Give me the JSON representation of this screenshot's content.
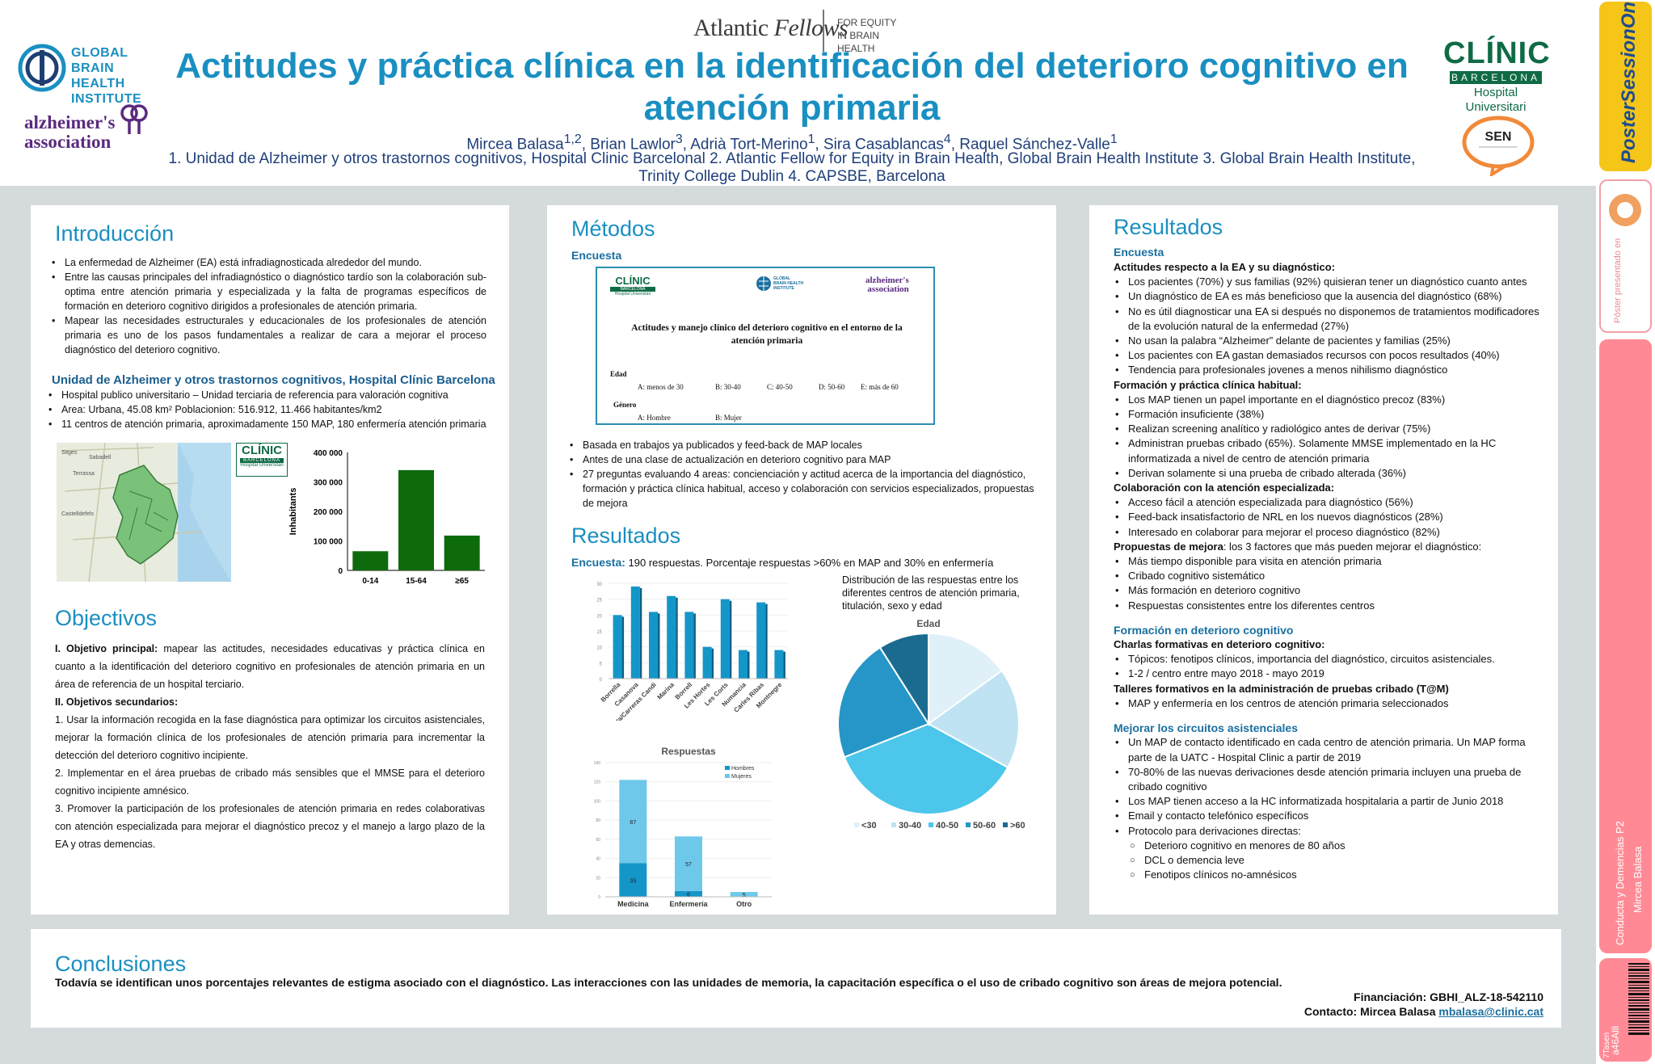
{
  "header": {
    "atlantic": {
      "name_a": "Atlantic",
      "name_b": "Fellows",
      "tag1": "FOR EQUITY",
      "tag2": "IN BRAIN HEALTH"
    },
    "title": "Actitudes y práctica clínica en la identificación del deterioro cognitivo en atención primaria",
    "authors": [
      {
        "name": "Mircea Balasa",
        "sup": "1,2",
        "sep": ", "
      },
      {
        "name": "Brian Lawlor",
        "sup": "3",
        "sep": ",  "
      },
      {
        "name": "Adrià Tort-Merino",
        "sup": "1",
        "sep": ", "
      },
      {
        "name": "Sira Casablancas",
        "sup": "4",
        "sep": ", "
      },
      {
        "name": "Raquel Sánchez-Valle",
        "sup": "1",
        "sep": ""
      }
    ],
    "affiliations": "1. Unidad de Alzheimer y otros trastornos cognitivos, Hospital Clinic Barcelonal 2. Atlantic Fellow for Equity in Brain Health, Global Brain Health Institute 3. Global Brain Health Institute, Trinity College Dublin 4. CAPSBE, Barcelona",
    "gbhi": [
      "GLOBAL",
      "BRAIN HEALTH",
      "INSTITUTE"
    ],
    "alz": [
      "alzheimer's",
      "association"
    ],
    "clinic": {
      "big": "CLÍNIC",
      "band": "BARCELONA",
      "hosp": "Hospital Universitari"
    },
    "sen": "SEN"
  },
  "strip": {
    "poster_online": "PosterSessionOnline",
    "presented": "Póster presentado en",
    "session": "Conducta y Demencias P2",
    "presenter": "Mircea Balasa",
    "code": "a46Alll",
    "bottom": "7Tasen"
  },
  "intro": {
    "heading": "Introducción",
    "bullets": [
      "La enfermedad de Alzheimer (EA) está infradiagnosticada alrededor del mundo.",
      "Entre las causas principales del infradiagnóstico o diagnóstico tardío son la colaboración sub-optima entre atención primaria y especializada y la  falta de programas específicos de formación en deterioro cognitivo dirigidos a profesionales de atención primaria.",
      "Mapear las necesidades estructurales y educacionales de los profesionales de atención primaria es uno de los pasos fundamentales a realizar de cara a mejorar el proceso diagnóstico del deterioro cognitivo."
    ],
    "unit_heading": "Unidad de Alzheimer y otros trastornos cognitivos, Hospital Clínic Barcelona",
    "unit_bullets": [
      "Hospital publico universitario – Unidad terciaria de  referencia para valoración cognitiva",
      "Area: Urbana, 45.08 km²  Poblacionion: 516.912, 11.466 habitantes/km2",
      "11 centros de atención primaria, aproximadamente 150 MAP, 180 enfermería atención primaria"
    ],
    "map_labels": [
      "Sitges",
      "Castelldefels",
      "Sabadell",
      "Terrassa"
    ]
  },
  "objectives": {
    "heading": "Objectivos",
    "main_label": "I. Objetivo principal:",
    "main_text": " mapear las actitudes, necesidades educativas y práctica clínica en cuanto a la identificación del deterioro cognitivo en profesionales de atención primaria en un área de referencia de un hospital terciario.",
    "secondary_label": "II. Objetivos secundarios:",
    "items": [
      "1.  Usar la información recogida en la fase diagnóstica para optimizar los circuitos asistenciales, mejorar la formación clínica de los profesionales de atención primaria para incrementar la detección del deterioro cognitivo incipiente.",
      "2. Implementar en el área pruebas de cribado más sensibles que el MMSE para el deterioro cognitivo incipiente amnésico.",
      "3. Promover la participación de los profesionales de atención primaria en redes colaborativas con atención especializada para mejorar el diagnóstico precoz y el manejo a largo plazo de la EA y otras demencias."
    ]
  },
  "methods": {
    "heading": "Métodos",
    "sub": "Encuesta",
    "survey": {
      "logo_clinic": "CLÍNIC",
      "logo_band": "BARCELONA",
      "logo_hosp": "Hospital Universitari",
      "logo_gbhi": "GLOBAL BRAIN HEALTH INSTITUTE",
      "logo_alz1": "alzheimer's",
      "logo_alz2": "association",
      "title": "Actitudes y manejo clínico del deterioro cognitivo en el entorno de la atención primaria",
      "edad": "Edad",
      "opts": [
        "A: menos de 30",
        "B: 30-40",
        "C: 40-50",
        "D: 50-60",
        "E: más de 60"
      ],
      "genero": "Género",
      "gopts": [
        "A: Hombre",
        "B: Mujer"
      ]
    },
    "bullets": [
      "Basada en trabajos ya publicados y feed-back de MAP locales",
      "Antes de una clase de actualización en deterioro cognitivo para MAP",
      "27 preguntas evaluando 4 areas: concienciación y actitud acerca de la importancia del diagnóstico, formación y práctica clínica habitual, acceso y colaboración con servicios especializados, propuestas de mejora"
    ]
  },
  "results_mid": {
    "heading": "Resultados",
    "enc_label": "Encuesta:",
    "enc_text": " 190 respuestas. Porcentaje respuestas >60% en MAP and 30% en enfermería",
    "pie_desc": "Distribución de las respuestas entre los diferentes centros de atención primaria, titulación, sexo y edad"
  },
  "results_right": {
    "heading": "Resultados",
    "sub_enc": "Encuesta",
    "groups1": [
      {
        "title": "Actitudes respecto a la EA y su diagnóstico:",
        "items": [
          "Los pacientes (70%) y sus familias (92%) quisieran tener un diagnóstico cuanto antes",
          "Un diagnóstico de EA es más beneficioso que la ausencia del diagnóstico (68%)",
          "No es útil diagnosticar una EA si después no disponemos de tratamientos modificadores de la evolución natural de la enfermedad (27%)",
          "No usan la palabra “Alzheimer” delante de pacientes y familias (25%)",
          "Los pacientes con EA gastan demasiados recursos con pocos resultados (40%)",
          "Tendencia para profesionales jovenes a menos nihilismo diagnóstico"
        ]
      },
      {
        "title": "Formación y práctica clínica habitual:",
        "items": [
          "Los MAP tienen un papel importante en el diagnóstico precoz  (83%)",
          "Formación insuficiente  (38%)",
          "Realizan screening analítico y radiológico antes de derivar  (75%)",
          "Administran pruebas cribado  (65%). Solamente  MMSE implementado en la HC informatizada a nivel de centro de atención primaria",
          "Derivan solamente si una prueba de cribado alterada  (36%)"
        ]
      },
      {
        "title": "Colaboración con la atención especializada:",
        "items": [
          "Acceso fácil a atención especializada para diagnóstico (56%)",
          "Feed-back insatisfactorio de NRL en los nuevos diagnósticos (28%)",
          "Interesado en colaborar para mejorar el proceso diagnóstico (82%)"
        ]
      }
    ],
    "prop_label": "Propuestas de mejora",
    "prop_text": ":  los 3 factores que más pueden mejorar el diagnóstico:",
    "prop_items": [
      "Más tiempo disponible para visita en atención primaria",
      "Cribado cognitivo sistemático",
      "Más formación en deterioro cognitivo",
      "Respuestas consistentes entre los diferentes centros"
    ],
    "sub_form": "Formación en deterioro cognitivo",
    "charlas_title": "Charlas formativas en deterioro cognitivo:",
    "charlas_items": [
      "Tópicos: fenotipos clínicos, importancia del diagnóstico, circuitos asistenciales.",
      "1-2 / centro entre mayo 2018 - mayo 2019"
    ],
    "talleres_title": "Talleres formativos en la administración de pruebas cribado (T@M)",
    "talleres_items": [
      "MAP y enfermería en los centros de atención primaria seleccionados"
    ],
    "sub_circ": "Mejorar los circuitos asistenciales",
    "circ_items": [
      "Un MAP de contacto identificado en cada centro de atención primaria. Un MAP forma parte de la UATC - Hospital Clinic a partir de 2019",
      "70-80% de las nuevas derivaciones desde atención primaria incluyen una prueba de cribado cognitivo",
      "Los MAP tienen acceso a la HC informatizada hospitalaria a partir de Junio 2018",
      "Email y contacto telefónico específicos",
      "Protocolo para derivaciones directas:"
    ],
    "circ_sub": [
      "Deterioro cognitivo en menores de 80 años",
      "DCL o demencia leve",
      "Fenotipos clínicos no-amnésicos"
    ]
  },
  "conclusions": {
    "heading": "Conclusiones",
    "text": "Todavía se identifican unos porcentajes relevantes de estigma asociado con el diagnóstico. Las interacciones con las unidades de memoria, la capacitación específica o el uso de cribado cognitivo son áreas de mejora potencial.",
    "funding": "Financiación: GBHI_ALZ-18-542110",
    "contact_label": "Contacto: Mircea Balasa  ",
    "email": "mbalasa@clinic.cat"
  },
  "colors": {
    "accent": "#1a8fc1",
    "green": "#0d6b0d",
    "cyan": "#1596c8"
  },
  "chart_data": [
    {
      "type": "bar",
      "categories": [
        "0-14",
        "15-64",
        "≥65"
      ],
      "values": [
        65000,
        340000,
        118000
      ],
      "ylabel": "Inhabitants",
      "ylim": [
        0,
        400000
      ],
      "yticks": [
        0,
        100000,
        200000,
        300000,
        400000
      ],
      "ytick_labels": [
        "0",
        "100 000",
        "200 000",
        "300 000",
        "400 000"
      ]
    },
    {
      "type": "bar",
      "categories": [
        "Borrella",
        "Casanova",
        "Santa/Carreras Candi",
        "Marina",
        "Borrell",
        "Les Hortes",
        "Les Corts",
        "Numancia",
        "Carles Ribas",
        "Montnegre"
      ],
      "values": [
        20,
        29,
        21,
        26,
        21,
        10,
        25,
        9,
        24,
        9
      ],
      "ylim": [
        0,
        30
      ],
      "yticks": [
        0,
        5,
        10,
        15,
        20,
        25,
        30
      ]
    },
    {
      "type": "bar",
      "stacked": true,
      "title": "Respuestas",
      "categories": [
        "Medicina",
        "Enfermería",
        "Otro"
      ],
      "series": [
        {
          "name": "Hombres",
          "values": [
            35,
            6,
            0
          ]
        },
        {
          "name": "Mujeres",
          "values": [
            87,
            57,
            5
          ]
        }
      ],
      "labels": [
        [
          "35",
          "87"
        ],
        [
          "6",
          "57"
        ],
        [
          "",
          "5"
        ]
      ],
      "ylim": [
        0,
        140
      ],
      "yticks": [
        0,
        20,
        40,
        60,
        80,
        100,
        120,
        140
      ]
    },
    {
      "type": "pie",
      "title": "Edad",
      "categories": [
        "<30",
        "30-40",
        "40-50",
        "50-60",
        ">60"
      ],
      "values": [
        15,
        18,
        36,
        22,
        9
      ],
      "colors": [
        "#dff0f8",
        "#bfe3f2",
        "#4cc6ea",
        "#2596c7",
        "#1b6a8f"
      ]
    }
  ]
}
